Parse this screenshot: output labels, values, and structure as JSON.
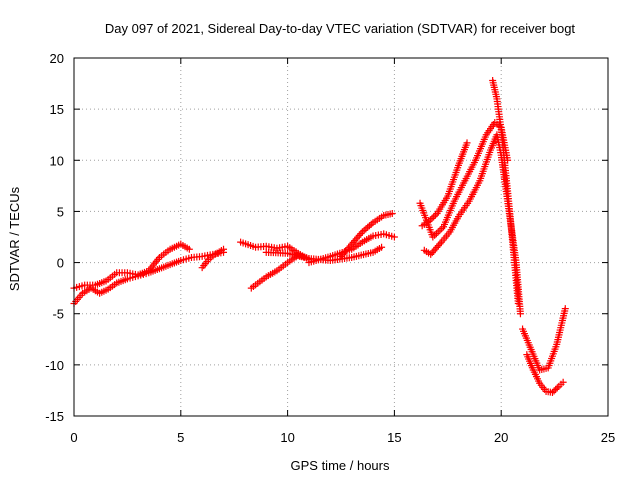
{
  "chart_data": {
    "type": "scatter",
    "title": "Day 097 of 2021, Sidereal Day-to-day VTEC variation (SDTVAR) for receiver bogt",
    "xlabel": "GPS time / hours",
    "ylabel": "SDTVAR / TECUs",
    "xlim": [
      0,
      25
    ],
    "ylim": [
      -15,
      20
    ],
    "xticks": [
      0,
      5,
      10,
      15,
      20,
      25
    ],
    "yticks": [
      -15,
      -10,
      -5,
      0,
      5,
      10,
      15,
      20
    ],
    "grid": true,
    "marker": "plus",
    "color": "#ff0000",
    "series": [
      {
        "x": [
          0.0,
          0.4,
          0.8,
          1.2,
          1.6,
          2.0,
          2.5,
          3.0,
          3.5,
          4.0,
          4.5,
          5.0,
          5.5,
          6.0,
          6.5,
          7.0
        ],
        "y": [
          -4.0,
          -3.0,
          -2.5,
          -3.0,
          -2.6,
          -2.0,
          -1.6,
          -1.3,
          -1.0,
          -0.6,
          -0.2,
          0.2,
          0.5,
          0.6,
          0.8,
          1.0
        ]
      },
      {
        "x": [
          0.0,
          0.5,
          1.0,
          1.5,
          2.0,
          2.5,
          3.0,
          3.5,
          4.0,
          4.5,
          5.0,
          5.4
        ],
        "y": [
          -2.5,
          -2.2,
          -2.2,
          -1.8,
          -1.0,
          -1.0,
          -1.2,
          -0.8,
          0.5,
          1.3,
          1.8,
          1.3
        ]
      },
      {
        "x": [
          6.0,
          6.3,
          6.6,
          7.0
        ],
        "y": [
          -0.5,
          0.3,
          0.8,
          1.3
        ]
      },
      {
        "x": [
          7.8,
          8.5,
          9.0,
          9.5,
          10.0,
          10.5,
          11.0
        ],
        "y": [
          2.0,
          1.5,
          1.6,
          1.4,
          1.6,
          0.9,
          0.3
        ]
      },
      {
        "x": [
          8.3,
          9.0,
          9.5,
          10.0,
          10.5,
          11.0
        ],
        "y": [
          -2.5,
          -1.4,
          -0.8,
          0.0,
          0.7,
          0.4
        ]
      },
      {
        "x": [
          9.0,
          10.0,
          11.0,
          12.0,
          13.0,
          14.0,
          14.4
        ],
        "y": [
          1.0,
          0.9,
          0.4,
          0.2,
          0.5,
          1.0,
          1.5
        ]
      },
      {
        "x": [
          11.0,
          12.0,
          13.0,
          13.5,
          14.0,
          14.5,
          15.0
        ],
        "y": [
          0.0,
          0.6,
          1.3,
          2.0,
          2.6,
          2.8,
          2.5
        ]
      },
      {
        "x": [
          12.5,
          13.0,
          13.5,
          14.0,
          14.5,
          14.9
        ],
        "y": [
          0.6,
          1.8,
          3.0,
          3.9,
          4.6,
          4.8
        ]
      },
      {
        "x": [
          16.3,
          16.6,
          17.0,
          17.5,
          18.0,
          18.4
        ],
        "y": [
          3.6,
          4.0,
          4.8,
          6.5,
          9.5,
          11.7
        ]
      },
      {
        "x": [
          16.4,
          16.7,
          17.2,
          17.6,
          18.0,
          18.5,
          19.0,
          19.5,
          19.8,
          20.0,
          20.3,
          20.7,
          20.9
        ],
        "y": [
          1.2,
          0.8,
          2.0,
          3.0,
          4.5,
          6.0,
          8.0,
          11.0,
          12.5,
          10.5,
          6.0,
          0.0,
          -5.0
        ]
      },
      {
        "x": [
          16.2,
          16.8,
          17.3,
          17.8,
          18.3,
          18.8,
          19.3,
          19.7,
          20.0,
          20.3
        ],
        "y": [
          5.8,
          2.5,
          3.5,
          6.0,
          8.0,
          10.0,
          12.5,
          13.7,
          13.2,
          10.0
        ]
      },
      {
        "x": [
          19.6,
          19.8,
          20.0,
          20.2,
          20.4,
          20.6,
          20.8
        ],
        "y": [
          17.8,
          16.0,
          13.0,
          9.0,
          5.0,
          0.5,
          -4.0
        ]
      },
      {
        "x": [
          21.0,
          21.4,
          21.8,
          22.2,
          22.6,
          23.0
        ],
        "y": [
          -6.5,
          -8.5,
          -10.5,
          -10.3,
          -8.0,
          -4.5
        ]
      },
      {
        "x": [
          21.2,
          21.5,
          21.8,
          22.1,
          22.4,
          22.7,
          22.9
        ],
        "y": [
          -9.0,
          -10.5,
          -11.8,
          -12.6,
          -12.7,
          -12.1,
          -11.7
        ]
      }
    ]
  }
}
